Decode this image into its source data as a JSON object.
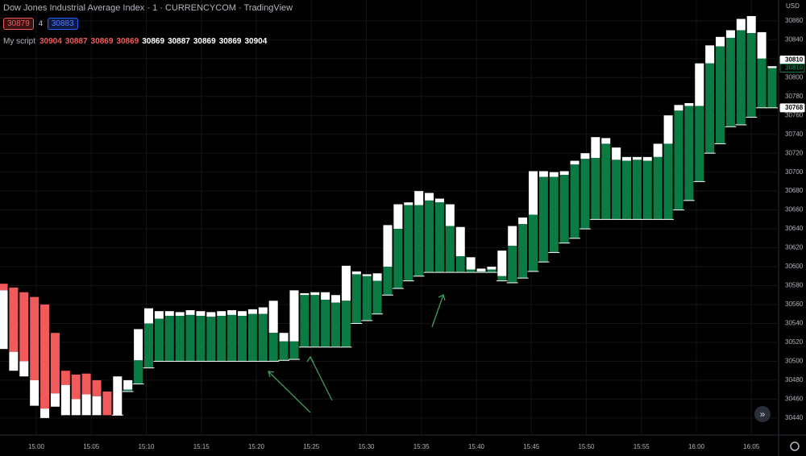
{
  "header": {
    "title": "Dow Jones Industrial Average Index · 1 · CURRENCYCOM · TradingView",
    "sell": "30879",
    "spread": "4",
    "buy": "30883"
  },
  "script": {
    "name": "My script",
    "values": [
      30904,
      30887,
      30869,
      30869,
      30869,
      30887,
      30869,
      30869,
      30904
    ],
    "colors": [
      "#f05a5a",
      "#f05a5a",
      "#f05a5a",
      "#f05a5a",
      "#ffffff",
      "#ffffff",
      "#ffffff",
      "#ffffff",
      "#ffffff"
    ]
  },
  "chart_data": {
    "type": "range_bars",
    "currency": "USD",
    "falling": {
      "color": "#f05a5a",
      "top": [
        30582,
        30578,
        30573,
        30568,
        30560,
        30530,
        30490,
        30486,
        30487,
        30480,
        30468
      ],
      "split": [
        30575,
        30510,
        30500,
        30480,
        30450,
        30466,
        30475,
        30460,
        30465,
        30463,
        30443
      ],
      "bottom": [
        30513,
        30490,
        30484,
        30453,
        30440,
        30452,
        30443,
        30443,
        30443,
        30443,
        30443
      ]
    },
    "rising": {
      "color": "#0c7a43",
      "top": [
        30484,
        30480,
        30534,
        30556,
        30553,
        30553,
        30552,
        30554,
        30553,
        30552,
        30553,
        30554,
        30553,
        30555,
        30557,
        30564,
        30530,
        30575,
        30572,
        30573,
        30573,
        30570,
        30601,
        30595,
        30592,
        30593,
        30644,
        30666,
        30668,
        30680,
        30678,
        30672,
        30666,
        30642,
        30610,
        30598,
        30600,
        30617,
        30643,
        30652,
        30701,
        30701,
        30700,
        30701,
        30712,
        30720,
        30737,
        30736,
        30726,
        30716,
        30716,
        30716,
        30730,
        30760,
        30771,
        30773,
        30815,
        30834,
        30843,
        30850,
        30862,
        30865,
        30848,
        30812
      ],
      "split": [
        30443,
        30470,
        30501,
        30540,
        30545,
        30548,
        30548,
        30549,
        30548,
        30547,
        30548,
        30549,
        30548,
        30550,
        30550,
        30530,
        30521,
        30521,
        30570,
        30570,
        30565,
        30562,
        30564,
        30592,
        30590,
        30585,
        30600,
        30640,
        30665,
        30665,
        30670,
        30668,
        30643,
        30611,
        30597,
        30595,
        30597,
        30590,
        30622,
        30645,
        30655,
        30695,
        30695,
        30697,
        30708,
        30714,
        30715,
        30730,
        30713,
        30712,
        30713,
        30712,
        30716,
        30730,
        30765,
        30770,
        30770,
        30815,
        30833,
        30842,
        30850,
        30847,
        30820,
        30810
      ],
      "bottom": [
        30443,
        30468,
        30476,
        30493,
        30500,
        30500,
        30500,
        30500,
        30500,
        30500,
        30500,
        30500,
        30500,
        30500,
        30500,
        30500,
        30501,
        30502,
        30515,
        30515,
        30515,
        30515,
        30515,
        30540,
        30543,
        30550,
        30570,
        30577,
        30585,
        30590,
        30594,
        30594,
        30594,
        30594,
        30594,
        30594,
        30594,
        30585,
        30583,
        30588,
        30595,
        30605,
        30615,
        30625,
        30630,
        30640,
        30650,
        30650,
        30650,
        30650,
        30650,
        30650,
        30650,
        30650,
        30660,
        30670,
        30690,
        30720,
        30730,
        30748,
        30750,
        30758,
        30768,
        30768
      ]
    },
    "ylim": [
      30422,
      30882
    ],
    "yticks": [
      30440,
      30460,
      30480,
      30500,
      30520,
      30540,
      30560,
      30580,
      30600,
      30620,
      30640,
      30660,
      30680,
      30700,
      30720,
      30740,
      30760,
      30780,
      30800,
      30820,
      30840,
      30860
    ],
    "time_labels": [
      "15:00",
      "15:05",
      "15:10",
      "15:15",
      "15:20",
      "15:25",
      "15:30",
      "15:35",
      "15:40",
      "15:45",
      "15:50",
      "15:55",
      "16:00",
      "16:05"
    ],
    "price_tags": [
      {
        "value": 30810,
        "color": "#ffffff"
      },
      {
        "value": 30810,
        "color": "#0c7a43"
      },
      {
        "value": 30768,
        "color": "#ffffff"
      }
    ]
  }
}
